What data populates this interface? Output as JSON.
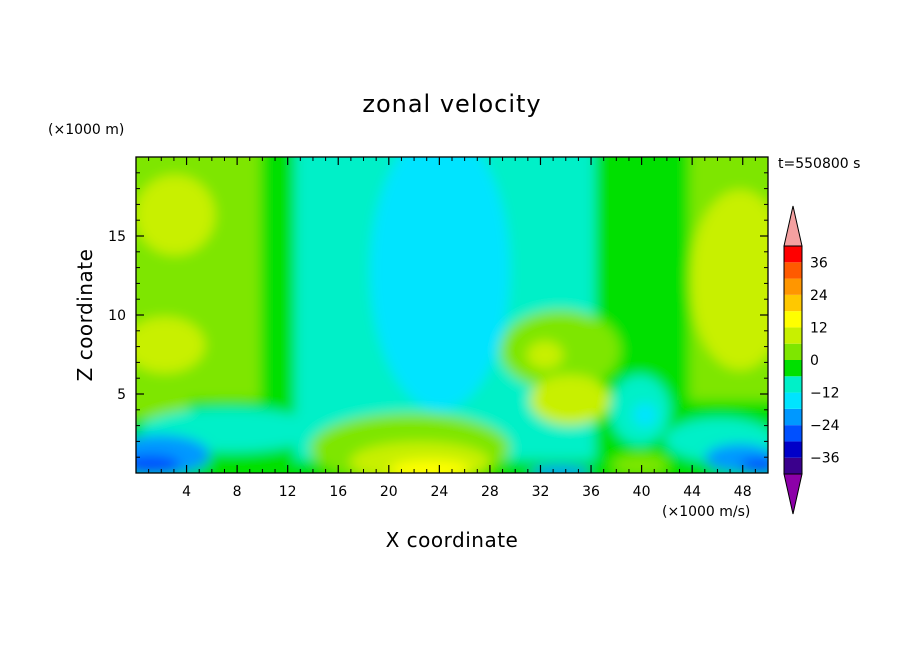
{
  "chart_data": {
    "type": "heatmap",
    "title": "zonal velocity",
    "xlabel": "X coordinate",
    "ylabel": "Z coordinate",
    "y_unit": "(×1000 m)",
    "x_unit": "(×1000 m/s)",
    "time_label": "t=550800 s",
    "xlim": [
      0,
      50
    ],
    "ylim": [
      0,
      20
    ],
    "x_ticks": [
      4,
      8,
      12,
      16,
      20,
      24,
      28,
      32,
      36,
      40,
      44,
      48
    ],
    "y_ticks": [
      5,
      10,
      15
    ],
    "colorbar": {
      "ticks": [
        36,
        24,
        12,
        0,
        -12,
        -24,
        -36
      ],
      "levels": [
        -42,
        -36,
        -30,
        -24,
        -18,
        -12,
        -6,
        0,
        6,
        12,
        18,
        24,
        30,
        36,
        42
      ],
      "extend": "both"
    }
  },
  "colors": {
    "levels": [
      "#8c00a8",
      "#3a008c",
      "#0000c8",
      "#0050ff",
      "#0098ff",
      "#00e4ff",
      "#00f0c8",
      "#00e000",
      "#7ee600",
      "#c8f000",
      "#ffff00",
      "#ffc800",
      "#ff9600",
      "#ff5a00",
      "#ff0000",
      "#f4a0a0"
    ]
  }
}
